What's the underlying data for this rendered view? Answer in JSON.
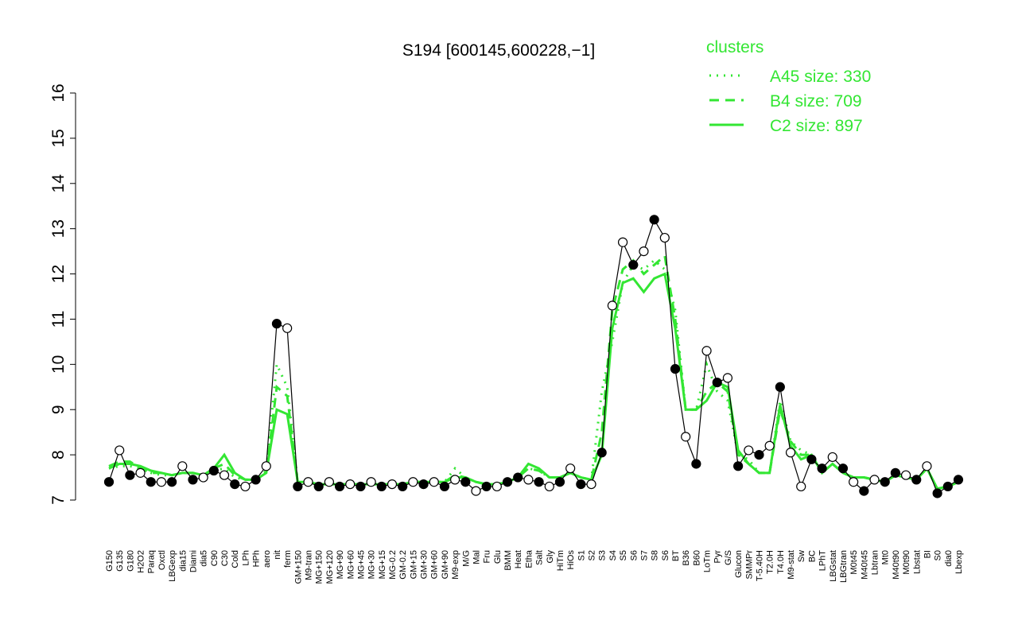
{
  "chart_data": {
    "type": "line",
    "title": "S194 [600145,600228,−1]",
    "legend_title": "clusters",
    "categories": [
      "G150",
      "G135",
      "G180",
      "H2O2",
      "Paraq",
      "Oxctl",
      "LBGexp",
      "dia15",
      "Diami",
      "dia5",
      "C90",
      "C30",
      "Cold",
      "LPh",
      "HPh",
      "aero",
      "nit",
      "ferm",
      "GM+150",
      "M9-tran",
      "MG+150",
      "MG+120",
      "MG+90",
      "MG+60",
      "MG+45",
      "MG+30",
      "MG+15",
      "MG-0.2",
      "GM-0.2",
      "GM+15",
      "GM+30",
      "GM+60",
      "GM+90",
      "M9-exp",
      "M/G",
      "Mal",
      "Fru",
      "Glu",
      "BMM",
      "Heat",
      "Etha",
      "Salt",
      "Gly",
      "HiTm",
      "HiOs",
      "S1",
      "S2",
      "S3",
      "S4",
      "S5",
      "S6",
      "S7",
      "S8",
      "S6",
      "BT",
      "B36",
      "B60",
      "LoTm",
      "Pyr",
      "G/S",
      "Glucon",
      "SMMPr",
      "T-5.40H",
      "T2.0H",
      "T4.0H",
      "M9-stat",
      "Sw",
      "BC",
      "LPhT",
      "LBGstat",
      "LBGtran",
      "M0t45",
      "M40t45",
      "Lbtran",
      "Mt0",
      "M40t90",
      "M0t90",
      "Lbstat",
      "BI",
      "S0",
      "dia0",
      "Lbexp"
    ],
    "values": [
      7.4,
      8.1,
      7.55,
      7.6,
      7.4,
      7.4,
      7.4,
      7.75,
      7.45,
      7.5,
      7.65,
      7.55,
      7.35,
      7.3,
      7.45,
      7.75,
      10.9,
      10.8,
      7.3,
      7.4,
      7.3,
      7.4,
      7.3,
      7.35,
      7.3,
      7.4,
      7.3,
      7.35,
      7.3,
      7.4,
      7.35,
      7.4,
      7.3,
      7.45,
      7.4,
      7.2,
      7.3,
      7.3,
      7.4,
      7.5,
      7.45,
      7.4,
      7.3,
      7.4,
      7.7,
      7.35,
      7.35,
      8.05,
      11.3,
      12.7,
      12.2,
      12.5,
      13.2,
      12.8,
      9.9,
      8.4,
      7.8,
      10.3,
      9.6,
      9.7,
      7.75,
      8.1,
      8.0,
      8.2,
      9.5,
      8.05,
      7.3,
      7.9,
      7.7,
      7.95,
      7.7,
      7.4,
      7.2,
      7.45,
      7.4,
      7.6,
      7.55,
      7.45,
      7.75,
      7.15,
      7.3,
      7.45
    ],
    "point_colors": [
      "#000000",
      "#ffffff",
      "#000000",
      "#ffffff",
      "#000000",
      "#ffffff",
      "#000000",
      "#ffffff",
      "#000000",
      "#ffffff",
      "#000000",
      "#ffffff",
      "#000000",
      "#ffffff",
      "#000000",
      "#ffffff",
      "#000000",
      "#ffffff",
      "#000000",
      "#ffffff",
      "#000000",
      "#ffffff",
      "#000000",
      "#ffffff",
      "#000000",
      "#ffffff",
      "#000000",
      "#ffffff",
      "#000000",
      "#ffffff",
      "#000000",
      "#ffffff",
      "#000000",
      "#ffffff",
      "#000000",
      "#ffffff",
      "#000000",
      "#ffffff",
      "#000000",
      "#000000",
      "#ffffff",
      "#000000",
      "#ffffff",
      "#000000",
      "#ffffff",
      "#000000",
      "#ffffff",
      "#000000",
      "#ffffff",
      "#ffffff",
      "#000000",
      "#ffffff",
      "#000000",
      "#ffffff",
      "#000000",
      "#ffffff",
      "#000000",
      "#ffffff",
      "#000000",
      "#ffffff",
      "#000000",
      "#ffffff",
      "#000000",
      "#ffffff",
      "#000000",
      "#ffffff",
      "#ffffff",
      "#000000",
      "#000000",
      "#ffffff",
      "#000000",
      "#ffffff",
      "#000000",
      "#ffffff",
      "#000000",
      "#000000",
      "#ffffff",
      "#000000",
      "#ffffff",
      "#000000",
      "#000000",
      "#000000"
    ],
    "line_color": "#000000",
    "ylim": [
      7,
      16
    ],
    "yticks": [
      7,
      8,
      9,
      10,
      11,
      12,
      13,
      14,
      15,
      16
    ],
    "series": [
      {
        "name": "A45 size: 330",
        "color": "#33e633",
        "dash": "dotted",
        "values": [
          7.7,
          7.75,
          7.75,
          7.7,
          7.6,
          7.55,
          7.55,
          7.6,
          7.6,
          7.55,
          7.65,
          7.7,
          7.5,
          7.45,
          7.45,
          7.65,
          10.0,
          9.5,
          7.4,
          7.4,
          7.35,
          7.35,
          7.35,
          7.35,
          7.35,
          7.35,
          7.35,
          7.35,
          7.35,
          7.4,
          7.4,
          7.4,
          7.4,
          7.7,
          7.5,
          7.4,
          7.35,
          7.35,
          7.4,
          7.5,
          7.7,
          7.65,
          7.5,
          7.5,
          7.6,
          7.5,
          7.45,
          9.4,
          10.5,
          11.8,
          12.2,
          12.1,
          12.3,
          12.1,
          11.2,
          9.0,
          9.0,
          10.0,
          9.4,
          9.2,
          8.0,
          7.9,
          7.6,
          7.6,
          9.2,
          8.3,
          8.1,
          8.0,
          7.6,
          7.8,
          7.6,
          7.5,
          7.5,
          7.45,
          7.4,
          7.55,
          7.5,
          7.45,
          7.7,
          7.25,
          7.3,
          7.4
        ]
      },
      {
        "name": "B4 size: 709",
        "color": "#33e633",
        "dash": "dashed",
        "values": [
          7.75,
          7.85,
          7.85,
          7.7,
          7.6,
          7.6,
          7.55,
          7.6,
          7.6,
          7.55,
          7.7,
          7.8,
          7.55,
          7.45,
          7.45,
          7.6,
          9.5,
          9.3,
          7.4,
          7.4,
          7.35,
          7.35,
          7.35,
          7.35,
          7.35,
          7.35,
          7.35,
          7.35,
          7.35,
          7.4,
          7.4,
          7.4,
          7.4,
          7.55,
          7.5,
          7.4,
          7.35,
          7.35,
          7.4,
          7.5,
          7.7,
          7.65,
          7.5,
          7.5,
          7.6,
          7.5,
          7.45,
          8.5,
          11.2,
          12.1,
          12.3,
          12.0,
          12.2,
          12.4,
          11.0,
          9.0,
          9.0,
          9.4,
          9.6,
          9.4,
          8.0,
          7.8,
          7.6,
          7.6,
          9.0,
          8.3,
          8.0,
          8.0,
          7.6,
          7.8,
          7.6,
          7.5,
          7.5,
          7.45,
          7.4,
          7.55,
          7.5,
          7.45,
          7.7,
          7.25,
          7.3,
          7.4
        ]
      },
      {
        "name": "C2 size: 897",
        "color": "#33e633",
        "dash": "solid",
        "values": [
          7.7,
          7.8,
          7.8,
          7.75,
          7.65,
          7.6,
          7.55,
          7.6,
          7.6,
          7.55,
          7.7,
          8.0,
          7.6,
          7.45,
          7.45,
          7.6,
          9.0,
          8.9,
          7.4,
          7.4,
          7.35,
          7.35,
          7.35,
          7.35,
          7.35,
          7.35,
          7.35,
          7.35,
          7.35,
          7.4,
          7.4,
          7.4,
          7.4,
          7.5,
          7.5,
          7.4,
          7.35,
          7.35,
          7.4,
          7.5,
          7.8,
          7.7,
          7.5,
          7.5,
          7.6,
          7.5,
          7.45,
          8.0,
          10.8,
          11.8,
          11.9,
          11.6,
          11.9,
          12.0,
          10.8,
          9.0,
          9.0,
          9.2,
          9.6,
          9.5,
          8.1,
          7.8,
          7.6,
          7.6,
          9.1,
          8.2,
          7.9,
          8.0,
          7.6,
          7.8,
          7.6,
          7.5,
          7.5,
          7.45,
          7.4,
          7.55,
          7.5,
          7.45,
          7.7,
          7.25,
          7.3,
          7.4
        ]
      }
    ]
  }
}
